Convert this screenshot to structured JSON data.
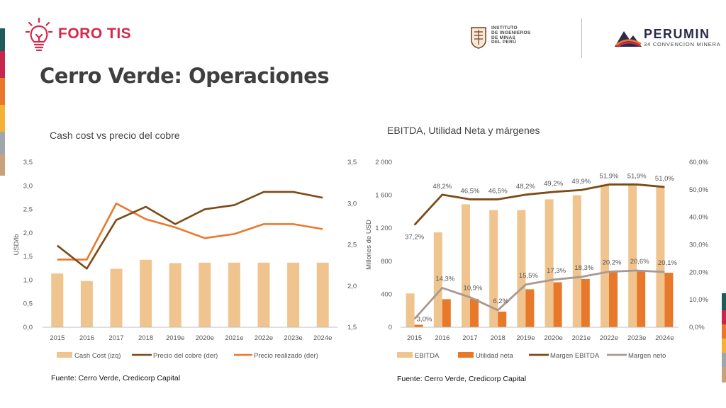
{
  "header": {
    "brand": "FORO TIS",
    "title": "Cerro Verde: Operaciones",
    "iimp_lines": [
      "INSTITUTO",
      "DE INGENIEROS",
      "DE MINAS",
      "DEL PERÚ"
    ],
    "perumin_name": "PERUMIN",
    "perumin_sub": "34 CONVENCION MINERA"
  },
  "colors": {
    "brand_red": "#d6284b",
    "cash_cost": "#f0c48f",
    "copper_price": "#7b4a16",
    "realized_price": "#e8782a",
    "ebitda": "#f0c48f",
    "net_income": "#e8782a",
    "ebitda_margin": "#7b4a16",
    "net_margin": "#a89a92",
    "stripes": [
      "#1d5c5a",
      "#c8274d",
      "#d6284b",
      "#e8782a",
      "#f2b233",
      "#9fa7ad",
      "#c9a27c"
    ]
  },
  "chart_data": [
    {
      "type": "bar",
      "title": "Cash cost vs precio del cobre",
      "ylabel": "USD/lb",
      "categories": [
        "2015",
        "2016",
        "2017",
        "2018",
        "2019e",
        "2020e",
        "2021e",
        "2022e",
        "2023e",
        "2024e"
      ],
      "ylim_left": [
        0,
        3.5
      ],
      "yticks_left": [
        "0,0",
        "0,5",
        "1,0",
        "1,5",
        "2,0",
        "2,5",
        "3,0",
        "3,5"
      ],
      "ylim_right": [
        1.5,
        3.5
      ],
      "yticks_right": [
        "1,5",
        "2,0",
        "2,5",
        "3,0",
        "3,5"
      ],
      "series": [
        {
          "name": "Cash Cost (izq)",
          "kind": "bar",
          "axis": "left",
          "values": [
            1.14,
            0.98,
            1.24,
            1.43,
            1.36,
            1.37,
            1.37,
            1.37,
            1.37,
            1.37
          ]
        },
        {
          "name": "Precio del cobre (der)",
          "kind": "line",
          "axis": "right",
          "values": [
            2.49,
            2.21,
            2.8,
            2.96,
            2.75,
            2.93,
            2.98,
            3.14,
            3.14,
            3.07
          ]
        },
        {
          "name": "Precio realizado (der)",
          "kind": "line",
          "axis": "right",
          "values": [
            2.32,
            2.32,
            3.0,
            2.81,
            2.71,
            2.58,
            2.63,
            2.75,
            2.75,
            2.69
          ]
        }
      ],
      "legend": "bottom",
      "source": "Fuente: Cerro Verde, Credicorp Capital"
    },
    {
      "type": "bar",
      "title": "EBITDA, Utilidad Neta y márgenes",
      "ylabel": "Millones de USD",
      "categories": [
        "2015",
        "2016",
        "2017",
        "2018",
        "2019e",
        "2020e",
        "2021e",
        "2022e",
        "2023e",
        "2024e"
      ],
      "ylim_left": [
        0,
        2000
      ],
      "yticks_left": [
        "0",
        "400",
        "800",
        "1 200",
        "1 600",
        "2 000"
      ],
      "ylim_right": [
        0,
        60
      ],
      "yticks_right": [
        "0,0%",
        "10,0%",
        "20,0%",
        "30,0%",
        "40,0%",
        "50,0%",
        "60,0%"
      ],
      "series": [
        {
          "name": "EBITDA",
          "kind": "bar",
          "axis": "left",
          "values": [
            410,
            1150,
            1490,
            1420,
            1420,
            1550,
            1600,
            1730,
            1720,
            1700
          ]
        },
        {
          "name": "Utilidad neta",
          "kind": "bar",
          "axis": "left",
          "values": [
            30,
            340,
            345,
            190,
            460,
            545,
            585,
            670,
            690,
            660
          ]
        },
        {
          "name": "Margen EBITDA",
          "kind": "line",
          "axis": "right",
          "values": [
            37.2,
            48.2,
            46.5,
            46.5,
            48.2,
            49.2,
            49.9,
            51.9,
            51.9,
            51.0
          ],
          "labels": [
            "37,2%",
            "48,2%",
            "46,5%",
            "46,5%",
            "48,2%",
            "49,2%",
            "49,9%",
            "51,9%",
            "51,9%",
            "51,0%"
          ]
        },
        {
          "name": "Margen neto",
          "kind": "line",
          "axis": "right",
          "values": [
            3.0,
            14.3,
            10.9,
            6.2,
            15.5,
            17.3,
            18.3,
            20.2,
            20.6,
            20.1
          ],
          "labels": [
            "3,0%",
            "14,3%",
            "10,9%",
            "6,2%",
            "15,5%",
            "17,3%",
            "18,3%",
            "20,2%",
            "20,6%",
            "20,1%"
          ]
        }
      ],
      "legend": "bottom",
      "source": "Fuente: Cerro Verde, Credicorp Capital"
    }
  ]
}
